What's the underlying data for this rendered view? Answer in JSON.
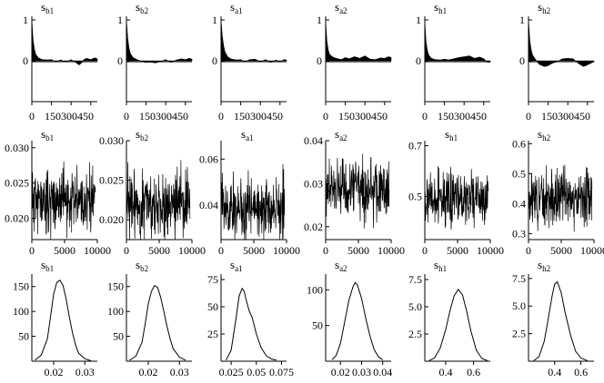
{
  "figure": {
    "columns": [
      {
        "symbol": "s",
        "sub": "b1"
      },
      {
        "symbol": "s",
        "sub": "b2"
      },
      {
        "symbol": "s",
        "sub": "a1"
      },
      {
        "symbol": "s",
        "sub": "a2"
      },
      {
        "symbol": "s",
        "sub": "h1"
      },
      {
        "symbol": "s",
        "sub": "h2"
      }
    ]
  },
  "chart_data": [
    {
      "row": "autocorrelation",
      "type": "area",
      "x_ticks": [
        "0",
        "150",
        "300",
        "450"
      ],
      "y_ticks": [
        "1",
        "0"
      ],
      "xlim": [
        0,
        500
      ],
      "ylim": [
        -1,
        1
      ],
      "note_x_range": [
        0,
        500
      ],
      "panels": [
        {
          "label": "s_b1",
          "x": [
            0,
            5,
            10,
            20,
            30,
            50,
            80,
            120,
            150,
            180,
            220,
            260,
            300,
            340,
            360,
            380,
            400,
            420,
            450,
            480,
            500
          ],
          "y": [
            1,
            0.75,
            0.5,
            0.28,
            0.16,
            0.07,
            0.03,
            0.02,
            0.03,
            -0.02,
            0.02,
            -0.03,
            0.03,
            -0.05,
            -0.1,
            -0.05,
            0.04,
            0.06,
            0.03,
            0.07,
            0.05
          ]
        },
        {
          "label": "s_b2",
          "x": [
            0,
            5,
            10,
            20,
            30,
            50,
            80,
            120,
            150,
            180,
            220,
            260,
            300,
            340,
            380,
            420,
            450,
            480,
            500
          ],
          "y": [
            1,
            0.78,
            0.55,
            0.3,
            0.18,
            0.08,
            0.03,
            -0.02,
            -0.04,
            -0.03,
            -0.05,
            -0.02,
            0.03,
            -0.04,
            0.02,
            0.05,
            0.03,
            0.06,
            0.04
          ]
        },
        {
          "label": "s_a1",
          "x": [
            0,
            5,
            10,
            20,
            30,
            50,
            80,
            120,
            150,
            180,
            220,
            260,
            300,
            340,
            380,
            420,
            450,
            480,
            500
          ],
          "y": [
            1,
            0.8,
            0.6,
            0.36,
            0.22,
            0.1,
            0.04,
            0.02,
            0.03,
            -0.02,
            0.03,
            0.04,
            -0.02,
            0.03,
            -0.04,
            0.02,
            -0.03,
            0.03,
            0.02
          ]
        },
        {
          "label": "s_a2",
          "x": [
            0,
            5,
            10,
            20,
            30,
            50,
            80,
            120,
            150,
            180,
            220,
            260,
            300,
            340,
            380,
            420,
            450,
            480,
            500
          ],
          "y": [
            1,
            0.72,
            0.48,
            0.26,
            0.16,
            0.1,
            0.06,
            0.03,
            0.08,
            0.05,
            0.1,
            0.06,
            0.12,
            0.04,
            0.03,
            0.07,
            0.06,
            0.1,
            0.08
          ]
        },
        {
          "label": "s_h1",
          "x": [
            0,
            5,
            10,
            20,
            30,
            50,
            80,
            120,
            150,
            180,
            220,
            260,
            300,
            340,
            380,
            420,
            450,
            480,
            500
          ],
          "y": [
            1,
            0.7,
            0.45,
            0.25,
            0.14,
            0.06,
            0.03,
            0.02,
            0.04,
            0.02,
            0.05,
            0.08,
            0.1,
            0.12,
            0.06,
            0.09,
            0.05,
            -0.04,
            -0.03
          ]
        },
        {
          "label": "s_h2",
          "x": [
            0,
            5,
            10,
            20,
            30,
            50,
            80,
            120,
            150,
            180,
            220,
            260,
            300,
            340,
            380,
            420,
            450,
            480,
            500
          ],
          "y": [
            1,
            0.76,
            0.5,
            0.28,
            0.15,
            0.05,
            -0.08,
            -0.14,
            -0.12,
            -0.06,
            -0.02,
            0.05,
            0.06,
            0.05,
            -0.06,
            -0.14,
            -0.1,
            -0.05,
            -0.02
          ]
        }
      ]
    },
    {
      "row": "trace",
      "type": "line",
      "x_ticks": [
        "0",
        "5000",
        "10000"
      ],
      "xlim": [
        0,
        10000
      ],
      "n_points": 260,
      "panels": [
        {
          "label": "s_b1",
          "y_ticks": [
            "0.020",
            "0.025",
            "0.030"
          ],
          "ylim": [
            0.017,
            0.031
          ],
          "mean": 0.0225,
          "spread": 0.0055,
          "seed": 11
        },
        {
          "label": "s_b2",
          "y_ticks": [
            "0.020",
            "0.025",
            "0.030"
          ],
          "ylim": [
            0.0175,
            0.03
          ],
          "mean": 0.022,
          "spread": 0.0055,
          "seed": 23
        },
        {
          "label": "s_a1",
          "y_ticks": [
            "0.04",
            "0.06"
          ],
          "ylim": [
            0.025,
            0.068
          ],
          "mean": 0.039,
          "spread": 0.017,
          "seed": 37
        },
        {
          "label": "s_a2",
          "y_ticks": [
            "0.02",
            "0.03",
            "0.04"
          ],
          "ylim": [
            0.017,
            0.04
          ],
          "mean": 0.0285,
          "spread": 0.0085,
          "seed": 41
        },
        {
          "label": "s_h1",
          "y_ticks": [
            "0.5",
            "0.7"
          ],
          "ylim": [
            0.33,
            0.72
          ],
          "mean": 0.49,
          "spread": 0.13,
          "seed": 53
        },
        {
          "label": "s_h2",
          "y_ticks": [
            "0.3",
            "0.4",
            "0.5",
            "0.6"
          ],
          "ylim": [
            0.28,
            0.61
          ],
          "mean": 0.42,
          "spread": 0.11,
          "seed": 67
        }
      ]
    },
    {
      "row": "density",
      "type": "line",
      "panels": [
        {
          "label": "s_b1",
          "x_ticks": [
            "0.02",
            "0.03"
          ],
          "x_tick_vals": [
            0.02,
            0.03
          ],
          "y_ticks": [
            "50",
            "100",
            "150"
          ],
          "y_tick_vals": [
            50,
            100,
            150
          ],
          "xlim": [
            0.013,
            0.034
          ],
          "ylim": [
            0,
            175
          ],
          "x": [
            0.014,
            0.016,
            0.018,
            0.019,
            0.02,
            0.021,
            0.022,
            0.023,
            0.024,
            0.025,
            0.026,
            0.027,
            0.028,
            0.03,
            0.032
          ],
          "y": [
            2,
            12,
            45,
            90,
            135,
            158,
            163,
            152,
            125,
            90,
            58,
            33,
            16,
            5,
            1
          ]
        },
        {
          "label": "s_b2",
          "x_ticks": [
            "0.02",
            "0.03"
          ],
          "x_tick_vals": [
            0.02,
            0.03
          ],
          "y_ticks": [
            "50",
            "100",
            "150"
          ],
          "y_tick_vals": [
            50,
            100,
            150
          ],
          "xlim": [
            0.013,
            0.034
          ],
          "ylim": [
            0,
            175
          ],
          "x": [
            0.014,
            0.016,
            0.018,
            0.019,
            0.02,
            0.021,
            0.022,
            0.023,
            0.024,
            0.025,
            0.026,
            0.027,
            0.028,
            0.03,
            0.032
          ],
          "y": [
            2,
            10,
            38,
            75,
            115,
            140,
            152,
            148,
            128,
            100,
            70,
            45,
            25,
            8,
            2
          ]
        },
        {
          "label": "s_a1",
          "x_ticks": [
            "0.025",
            "0.05",
            "0.075"
          ],
          "x_tick_vals": [
            0.025,
            0.05,
            0.075
          ],
          "y_ticks": [
            "25",
            "50",
            "75"
          ],
          "y_tick_vals": [
            25,
            50,
            75
          ],
          "xlim": [
            0.015,
            0.08
          ],
          "ylim": [
            0,
            80
          ],
          "x": [
            0.02,
            0.025,
            0.03,
            0.033,
            0.036,
            0.038,
            0.04,
            0.043,
            0.046,
            0.05,
            0.055,
            0.06,
            0.065,
            0.07
          ],
          "y": [
            1,
            10,
            40,
            60,
            67,
            64,
            56,
            46,
            40,
            25,
            12,
            5,
            2,
            1
          ]
        },
        {
          "label": "s_a2",
          "x_ticks": [
            "0.02",
            "0.03",
            "0.04"
          ],
          "x_tick_vals": [
            0.02,
            0.03,
            0.04
          ],
          "y_ticks": [
            "50",
            "100"
          ],
          "y_tick_vals": [
            50,
            100
          ],
          "xlim": [
            0.013,
            0.044
          ],
          "ylim": [
            0,
            122
          ],
          "x": [
            0.016,
            0.018,
            0.02,
            0.022,
            0.024,
            0.026,
            0.027,
            0.028,
            0.03,
            0.032,
            0.034,
            0.036,
            0.038,
            0.04
          ],
          "y": [
            2,
            8,
            25,
            55,
            85,
            105,
            110,
            107,
            88,
            60,
            35,
            16,
            6,
            2
          ]
        },
        {
          "label": "s_h1",
          "x_ticks": [
            "0.4",
            "0.6"
          ],
          "x_tick_vals": [
            0.4,
            0.6
          ],
          "y_ticks": [
            "2.5",
            "5.0",
            "7.5"
          ],
          "y_tick_vals": [
            2.5,
            5.0,
            7.5
          ],
          "xlim": [
            0.25,
            0.72
          ],
          "ylim": [
            0,
            8
          ],
          "x": [
            0.28,
            0.32,
            0.36,
            0.4,
            0.43,
            0.46,
            0.49,
            0.52,
            0.55,
            0.58,
            0.62,
            0.66,
            0.7
          ],
          "y": [
            0.05,
            0.3,
            1.2,
            2.9,
            4.6,
            6.0,
            6.6,
            6.1,
            4.6,
            2.8,
            1.0,
            0.25,
            0.05
          ]
        },
        {
          "label": "s_h2",
          "x_ticks": [
            "0.4",
            "0.6"
          ],
          "x_tick_vals": [
            0.4,
            0.6
          ],
          "y_ticks": [
            "2.5",
            "5.0",
            "7.5"
          ],
          "y_tick_vals": [
            2.5,
            5.0,
            7.5
          ],
          "xlim": [
            0.2,
            0.7
          ],
          "ylim": [
            0,
            7.9
          ],
          "x": [
            0.24,
            0.28,
            0.32,
            0.35,
            0.38,
            0.4,
            0.42,
            0.45,
            0.48,
            0.52,
            0.56,
            0.6,
            0.65
          ],
          "y": [
            0.05,
            0.4,
            1.8,
            3.8,
            5.9,
            7.0,
            7.2,
            6.2,
            4.4,
            2.4,
            0.9,
            0.3,
            0.05
          ]
        }
      ]
    }
  ]
}
